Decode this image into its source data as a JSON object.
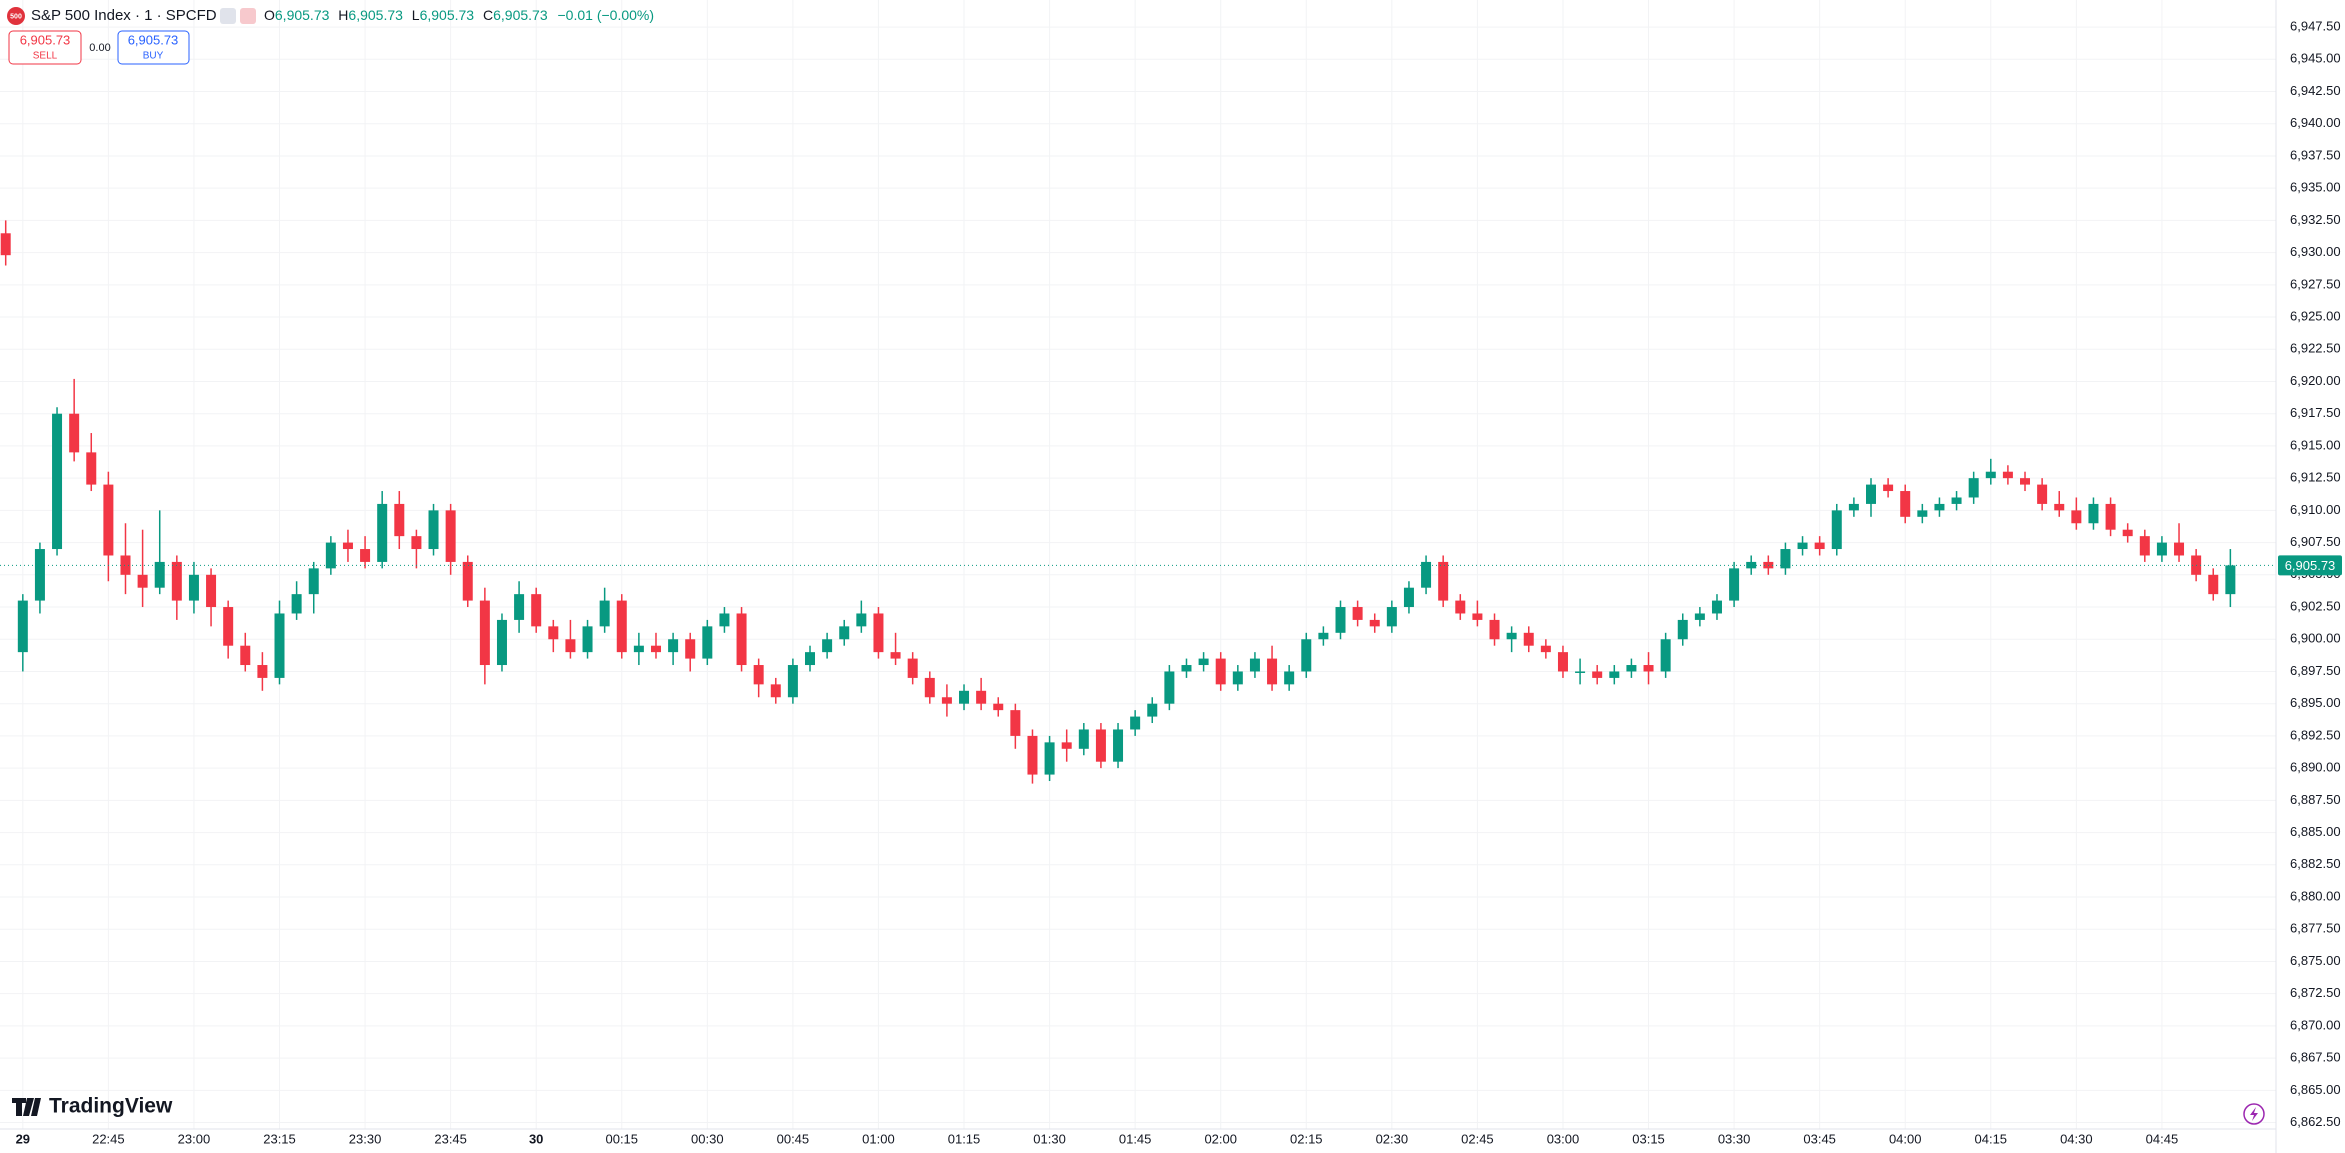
{
  "header": {
    "badge": "500",
    "symbol": "S&P 500 Index · 1 · SPCFD",
    "ohlc": [
      [
        "O",
        "6,905.73"
      ],
      [
        "H",
        "6,905.73"
      ],
      [
        "L",
        "6,905.73"
      ],
      [
        "C",
        "6,905.73"
      ]
    ],
    "change": "−0.01 (−0.00%)"
  },
  "trade": {
    "sell_price": "6,905.73",
    "sell_label": "SELL",
    "spread": "0.00",
    "buy_price": "6,905.73",
    "buy_label": "BUY"
  },
  "brand": "TradingView",
  "chart_data": {
    "type": "candlestick",
    "up_color": "#089981",
    "down_color": "#f23645",
    "grid": true,
    "xlim": [
      "22:26",
      "05:05"
    ],
    "ylim": [
      6862,
      6949.6
    ],
    "x": [
      "22:27",
      "22:30",
      "22:33",
      "22:36",
      "22:39",
      "22:42",
      "22:45",
      "22:48",
      "22:51",
      "22:54",
      "22:57",
      "23:00",
      "23:03",
      "23:06",
      "23:09",
      "23:12",
      "23:15",
      "23:18",
      "23:21",
      "23:24",
      "23:27",
      "23:30",
      "23:33",
      "23:36",
      "23:39",
      "23:42",
      "23:45",
      "23:48",
      "23:51",
      "23:54",
      "23:57",
      "00:00",
      "00:03",
      "00:06",
      "00:09",
      "00:12",
      "00:15",
      "00:18",
      "00:21",
      "00:24",
      "00:27",
      "00:30",
      "00:33",
      "00:36",
      "00:39",
      "00:42",
      "00:45",
      "00:48",
      "00:51",
      "00:54",
      "00:57",
      "01:00",
      "01:03",
      "01:06",
      "01:09",
      "01:12",
      "01:15",
      "01:18",
      "01:21",
      "01:24",
      "01:27",
      "01:30",
      "01:33",
      "01:36",
      "01:39",
      "01:42",
      "01:45",
      "01:48",
      "01:51",
      "01:54",
      "01:57",
      "02:00",
      "02:03",
      "02:06",
      "02:09",
      "02:12",
      "02:15",
      "02:18",
      "02:21",
      "02:24",
      "02:27",
      "02:30",
      "02:33",
      "02:36",
      "02:39",
      "02:42",
      "02:45",
      "02:48",
      "02:51",
      "02:54",
      "02:57",
      "03:00",
      "03:03",
      "03:06",
      "03:09",
      "03:12",
      "03:15",
      "03:18",
      "03:21",
      "03:24",
      "03:27",
      "03:30",
      "03:33",
      "03:36",
      "03:39",
      "03:42",
      "03:45",
      "03:48",
      "03:51",
      "03:54",
      "03:57",
      "04:00",
      "04:03",
      "04:06",
      "04:09",
      "04:12",
      "04:15",
      "04:18",
      "04:21",
      "04:24",
      "04:27",
      "04:30",
      "04:33",
      "04:36",
      "04:39",
      "04:42",
      "04:45",
      "04:48",
      "04:51",
      "04:54",
      "04:57"
    ],
    "open": [
      6931.5,
      6899,
      6903,
      6907,
      6917.5,
      6914.5,
      6912,
      6906.5,
      6905,
      6904,
      6906,
      6903,
      6905,
      6902.5,
      6899.5,
      6898,
      6897,
      6902,
      6903.5,
      6905.5,
      6907.5,
      6907,
      6906,
      6910.5,
      6908,
      6907,
      6910,
      6906,
      6903,
      6898,
      6901.5,
      6903.5,
      6901,
      6900,
      6899,
      6901,
      6903,
      6899,
      6899.5,
      6899,
      6900,
      6898.5,
      6901,
      6902,
      6898,
      6896.5,
      6895.5,
      6898,
      6899,
      6900,
      6901,
      6902,
      6899,
      6898.5,
      6897,
      6895.5,
      6895,
      6896,
      6895,
      6894.5,
      6892.5,
      6889.5,
      6892,
      6891.5,
      6893,
      6890.5,
      6893,
      6894,
      6895,
      6897.5,
      6898,
      6898.5,
      6896.5,
      6897.5,
      6898.5,
      6896.5,
      6897.5,
      6900,
      6900.5,
      6902.5,
      6901.5,
      6901,
      6902.5,
      6904,
      6906,
      6903,
      6902,
      6901.5,
      6900,
      6900.5,
      6899.5,
      6899,
      6897.5,
      6897.5,
      6897,
      6897.5,
      6898,
      6897.5,
      6900,
      6901.5,
      6902,
      6903,
      6905.5,
      6906,
      6905.5,
      6907,
      6907.5,
      6907,
      6910,
      6910.5,
      6912,
      6911.5,
      6909.5,
      6910,
      6910.5,
      6911,
      6912.5,
      6913,
      6912.5,
      6912,
      6910.5,
      6910,
      6909,
      6910.5,
      6908.5,
      6908,
      6906.5,
      6907.5,
      6906.5,
      6905,
      6903.5
    ],
    "high": [
      6932.5,
      6903.5,
      6907.5,
      6918,
      6920.2,
      6916,
      6913,
      6909,
      6908.5,
      6910,
      6906.5,
      6906,
      6905.5,
      6903,
      6900.5,
      6899,
      6903,
      6904.5,
      6906,
      6908,
      6908.5,
      6908,
      6911.5,
      6911.5,
      6908.5,
      6910.5,
      6910.5,
      6906.5,
      6904,
      6902,
      6904.5,
      6904,
      6901.5,
      6901.5,
      6901.5,
      6904,
      6903.5,
      6900.5,
      6900.5,
      6900.5,
      6900.5,
      6901.5,
      6902.5,
      6902.5,
      6898.5,
      6897,
      6898.5,
      6899.5,
      6900.5,
      6901.5,
      6903,
      6902.5,
      6900.5,
      6899,
      6897.5,
      6896.5,
      6896.5,
      6897,
      6895.5,
      6895,
      6893,
      6892.5,
      6893,
      6893.5,
      6893.5,
      6893.5,
      6894.5,
      6895.5,
      6898,
      6898.5,
      6899,
      6899,
      6898,
      6899,
      6899.5,
      6898,
      6900.5,
      6901,
      6903,
      6903,
      6902,
      6903,
      6904.5,
      6906.5,
      6906.5,
      6903.5,
      6903,
      6902,
      6901,
      6901,
      6900,
      6899.5,
      6898.5,
      6898,
      6898,
      6898.5,
      6899,
      6900.5,
      6902,
      6902.5,
      6903.5,
      6906,
      6906.5,
      6906.5,
      6907.5,
      6908,
      6908,
      6910.5,
      6911,
      6912.5,
      6912.5,
      6912,
      6910.5,
      6911,
      6911.5,
      6913,
      6914,
      6913.5,
      6913,
      6912.5,
      6911.5,
      6911,
      6911,
      6911,
      6909,
      6908.5,
      6908,
      6909,
      6907,
      6905.5,
      6907
    ],
    "low": [
      6929,
      6897.5,
      6902,
      6906.5,
      6913.8,
      6911.5,
      6904.5,
      6903.5,
      6902.5,
      6903.5,
      6901.5,
      6902,
      6901,
      6898.5,
      6897.5,
      6896,
      6896.5,
      6901.5,
      6902,
      6905,
      6906,
      6905.5,
      6905.5,
      6907,
      6905.5,
      6906.5,
      6905,
      6902.5,
      6896.5,
      6897.5,
      6900.5,
      6900.5,
      6899,
      6898.5,
      6898.5,
      6900.5,
      6898.5,
      6898,
      6898.5,
      6898,
      6897.5,
      6898,
      6900.5,
      6897.5,
      6895.5,
      6895,
      6895,
      6897.5,
      6898.5,
      6899.5,
      6900.5,
      6898.5,
      6898,
      6896.5,
      6895,
      6894,
      6894.5,
      6894.5,
      6894,
      6891.5,
      6888.8,
      6889,
      6890.5,
      6891,
      6890,
      6890,
      6892.5,
      6893.5,
      6894.5,
      6897,
      6897.5,
      6896,
      6896,
      6897,
      6896,
      6896,
      6897,
      6899.5,
      6900,
      6901,
      6900.5,
      6900.5,
      6902,
      6903.5,
      6902.5,
      6901.5,
      6901,
      6899.5,
      6899,
      6899,
      6898.5,
      6897,
      6896.5,
      6896.5,
      6896.5,
      6897,
      6896.5,
      6897,
      6899.5,
      6901,
      6901.5,
      6902.5,
      6905,
      6905,
      6905,
      6906.5,
      6906.5,
      6906.5,
      6909.5,
      6909.5,
      6911,
      6909,
      6909,
      6909.5,
      6910,
      6910.5,
      6912,
      6912,
      6911.5,
      6910,
      6909.5,
      6908.5,
      6908.5,
      6908,
      6907.5,
      6906,
      6906,
      6906,
      6904.5,
      6903,
      6902.5
    ],
    "close": [
      6929.8,
      6903,
      6907,
      6917.5,
      6914.5,
      6912,
      6906.5,
      6905,
      6904,
      6906,
      6903,
      6905,
      6902.5,
      6899.5,
      6898,
      6897,
      6902,
      6903.5,
      6905.5,
      6907.5,
      6907,
      6906,
      6910.5,
      6908,
      6907,
      6910,
      6906,
      6903,
      6898,
      6901.5,
      6903.5,
      6901,
      6900,
      6899,
      6901,
      6903,
      6899,
      6899.5,
      6899,
      6900,
      6898.5,
      6901,
      6902,
      6898,
      6896.5,
      6895.5,
      6898,
      6899,
      6900,
      6901,
      6902,
      6899,
      6898.5,
      6897,
      6895.5,
      6895,
      6896,
      6895,
      6894.5,
      6892.5,
      6889.5,
      6892,
      6891.5,
      6893,
      6890.5,
      6893,
      6894,
      6895,
      6897.5,
      6898,
      6898.5,
      6896.5,
      6897.5,
      6898.5,
      6896.5,
      6897.5,
      6900,
      6900.5,
      6902.5,
      6901.5,
      6901,
      6902.5,
      6904,
      6906,
      6903,
      6902,
      6901.5,
      6900,
      6900.5,
      6899.5,
      6899,
      6897.5,
      6897.5,
      6897,
      6897.5,
      6898,
      6897.5,
      6900,
      6901.5,
      6902,
      6903,
      6905.5,
      6906,
      6905.5,
      6907,
      6907.5,
      6907,
      6910,
      6910.5,
      6912,
      6911.5,
      6909.5,
      6910,
      6910.5,
      6911,
      6912.5,
      6913,
      6912.5,
      6912,
      6910.5,
      6910,
      6909,
      6910.5,
      6908.5,
      6908,
      6906.5,
      6907.5,
      6906.5,
      6905,
      6903.5,
      6905.73
    ],
    "last_price": {
      "value": 6905.73,
      "label": "6,905.73"
    },
    "xticks": [
      {
        "value": "22:30",
        "label": "29"
      },
      "22:45",
      "23:00",
      "23:15",
      "23:30",
      "23:45",
      {
        "value": "00:00",
        "label": "30"
      },
      "00:15",
      "00:30",
      "00:45",
      "01:00",
      "01:15",
      "01:30",
      "01:45",
      "02:00",
      "02:15",
      "02:30",
      "02:45",
      "03:00",
      "03:15",
      "03:30",
      "03:45",
      "04:00",
      "04:15",
      "04:30",
      "04:45"
    ],
    "yticks": [
      {
        "value": 6862.5,
        "label": "6,862.50"
      },
      {
        "value": 6865,
        "label": "6,865.00"
      },
      {
        "value": 6867.5,
        "label": "6,867.50"
      },
      {
        "value": 6870,
        "label": "6,870.00"
      },
      {
        "value": 6872.5,
        "label": "6,872.50"
      },
      {
        "value": 6875,
        "label": "6,875.00"
      },
      {
        "value": 6877.5,
        "label": "6,877.50"
      },
      {
        "value": 6880,
        "label": "6,880.00"
      },
      {
        "value": 6882.5,
        "label": "6,882.50"
      },
      {
        "value": 6885,
        "label": "6,885.00"
      },
      {
        "value": 6887.5,
        "label": "6,887.50"
      },
      {
        "value": 6890,
        "label": "6,890.00"
      },
      {
        "value": 6892.5,
        "label": "6,892.50"
      },
      {
        "value": 6895,
        "label": "6,895.00"
      },
      {
        "value": 6897.5,
        "label": "6,897.50"
      },
      {
        "value": 6900,
        "label": "6,900.00"
      },
      {
        "value": 6902.5,
        "label": "6,902.50"
      },
      {
        "value": 6905,
        "label": "6,905.00"
      },
      {
        "value": 6907.5,
        "label": "6,907.50"
      },
      {
        "value": 6910,
        "label": "6,910.00"
      },
      {
        "value": 6912.5,
        "label": "6,912.50"
      },
      {
        "value": 6915,
        "label": "6,915.00"
      },
      {
        "value": 6917.5,
        "label": "6,917.50"
      },
      {
        "value": 6920,
        "label": "6,920.00"
      },
      {
        "value": 6922.5,
        "label": "6,922.50"
      },
      {
        "value": 6925,
        "label": "6,925.00"
      },
      {
        "value": 6927.5,
        "label": "6,927.50"
      },
      {
        "value": 6930,
        "label": "6,930.00"
      },
      {
        "value": 6932.5,
        "label": "6,932.50"
      },
      {
        "value": 6935,
        "label": "6,935.00"
      },
      {
        "value": 6937.5,
        "label": "6,937.50"
      },
      {
        "value": 6940,
        "label": "6,940.00"
      },
      {
        "value": 6942.5,
        "label": "6,942.50"
      },
      {
        "value": 6945,
        "label": "6,945.00"
      },
      {
        "value": 6947.5,
        "label": "6,947.50"
      }
    ]
  }
}
